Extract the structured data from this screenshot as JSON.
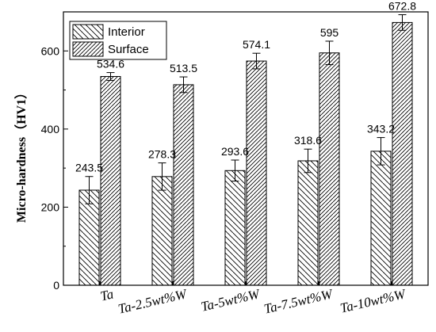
{
  "chart_data": {
    "type": "bar",
    "categories": [
      "Ta",
      "Ta-2.5wt%W",
      "Ta-5wt%W",
      "Ta-7.5wt%W",
      "Ta-10wt%W"
    ],
    "series": [
      {
        "name": "Interior",
        "values": [
          243.5,
          278.3,
          293.6,
          318.6,
          343.2
        ],
        "errors": [
          35,
          35,
          27,
          30,
          35
        ],
        "labels": [
          "243.5",
          "278.3",
          "293.6",
          "318.6",
          "343.2"
        ],
        "hatch": "backslash"
      },
      {
        "name": "Surface",
        "values": [
          534.6,
          513.5,
          574.1,
          595,
          672.8
        ],
        "errors": [
          10,
          20,
          20,
          30,
          20
        ],
        "labels": [
          "534.6",
          "513.5",
          "574.1",
          "595",
          "672.8"
        ],
        "hatch": "slash"
      }
    ],
    "xlabel": "",
    "ylabel": "Micro-hardness（HV1）",
    "ylim": [
      0,
      700
    ],
    "yticks": [
      0,
      200,
      400,
      600
    ],
    "grid": false,
    "legend_position": "top-left"
  }
}
